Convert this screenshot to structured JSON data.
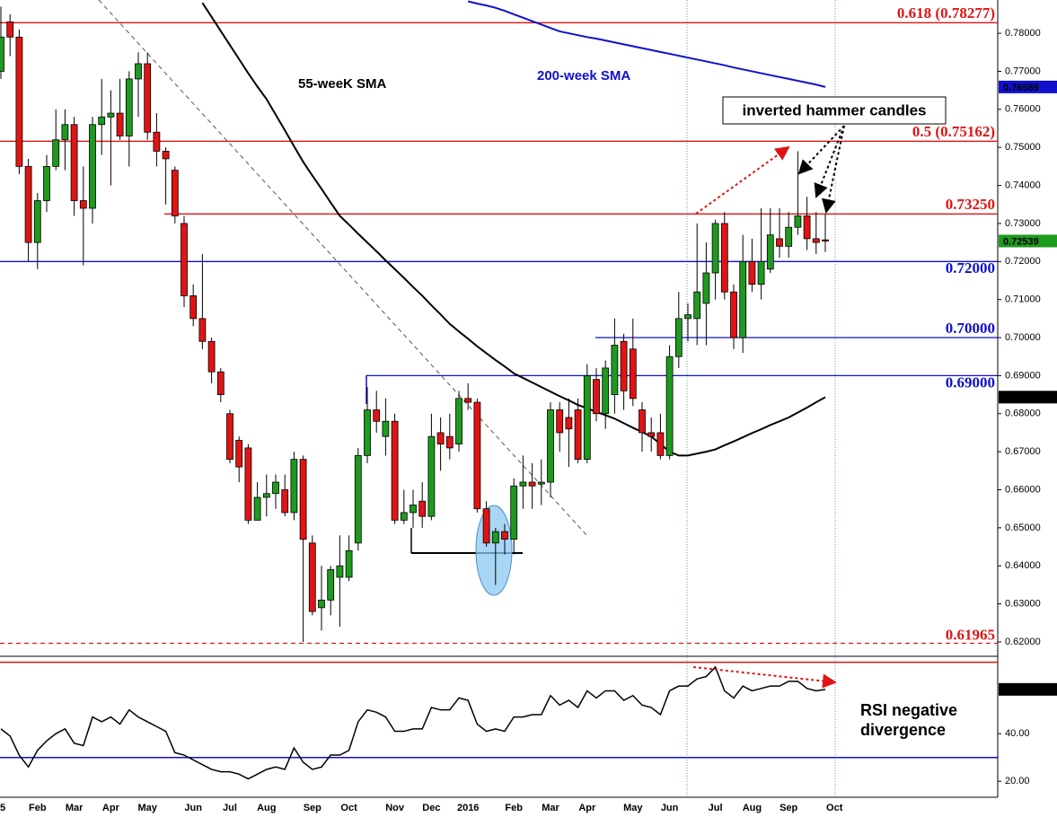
{
  "chart_data": [
    {
      "type": "candlestick",
      "categories": [
        "5",
        null,
        null,
        null,
        "Feb",
        null,
        null,
        null,
        "Mar",
        null,
        null,
        null,
        "Apr",
        null,
        null,
        null,
        "May",
        null,
        null,
        null,
        null,
        "Jun",
        null,
        null,
        null,
        "Jul",
        null,
        null,
        null,
        "Aug",
        null,
        null,
        null,
        null,
        "Sep",
        null,
        null,
        null,
        "Oct",
        null,
        null,
        null,
        null,
        "Nov",
        null,
        null,
        null,
        "Dec",
        null,
        null,
        null,
        "2016",
        null,
        null,
        null,
        null,
        "Feb",
        null,
        null,
        null,
        "Mar",
        null,
        null,
        null,
        "Apr",
        null,
        null,
        null,
        null,
        "May",
        null,
        null,
        null,
        "Jun",
        null,
        null,
        null,
        null,
        "Jul",
        null,
        null,
        null,
        "Aug",
        null,
        null,
        null,
        "Sep",
        null,
        null,
        null,
        null,
        "Oct"
      ],
      "open": [
        0.77,
        0.783,
        0.779,
        0.745,
        0.725,
        0.736,
        0.745,
        0.752,
        0.756,
        0.736,
        0.734,
        0.756,
        0.758,
        0.759,
        0.753,
        0.768,
        0.772,
        0.754,
        0.749,
        0.744,
        0.73,
        0.711,
        0.705,
        0.699,
        0.691,
        0.68,
        0.673,
        0.671,
        0.652,
        0.658,
        0.659,
        0.66,
        0.654,
        0.668,
        0.646,
        0.629,
        0.631,
        0.637,
        0.637,
        0.646,
        0.669,
        0.681,
        0.674,
        0.678,
        0.652,
        0.654,
        0.657,
        0.653,
        0.675,
        0.674,
        0.672,
        0.684,
        0.683,
        0.655,
        0.646,
        0.649,
        0.647,
        0.661,
        0.662,
        0.6615,
        0.662,
        0.681,
        0.679,
        0.681,
        0.668,
        0.689,
        0.68,
        0.685,
        0.699,
        0.697,
        0.681,
        0.675,
        0.675,
        0.669,
        0.695,
        0.705,
        0.705,
        0.709,
        0.717,
        0.73,
        0.712,
        0.7,
        0.72,
        0.714,
        0.718,
        0.726,
        0.724,
        0.729,
        0.732,
        0.726,
        0.7257,
        null
      ],
      "high": [
        0.787,
        0.785,
        0.781,
        0.747,
        0.738,
        0.748,
        0.76,
        0.76,
        0.758,
        0.745,
        0.758,
        0.768,
        0.765,
        0.768,
        0.77,
        0.775,
        0.775,
        0.759,
        0.75,
        0.745,
        0.732,
        0.714,
        0.722,
        0.7,
        0.692,
        0.681,
        0.674,
        0.672,
        0.662,
        0.664,
        0.664,
        0.664,
        0.67,
        0.669,
        0.648,
        0.64,
        0.64,
        0.648,
        0.648,
        0.671,
        0.687,
        0.686,
        0.684,
        0.68,
        0.66,
        0.66,
        0.662,
        0.68,
        0.679,
        0.68,
        0.686,
        0.688,
        0.684,
        0.657,
        0.65,
        0.651,
        0.663,
        0.669,
        0.667,
        0.668,
        0.683,
        0.683,
        0.684,
        0.684,
        0.693,
        0.692,
        0.694,
        0.705,
        0.701,
        0.705,
        0.683,
        0.679,
        0.68,
        0.698,
        0.712,
        0.709,
        0.73,
        0.725,
        0.731,
        0.733,
        0.714,
        0.727,
        0.726,
        0.734,
        0.734,
        0.734,
        0.733,
        0.749,
        0.737,
        0.733,
        0.7325,
        null
      ],
      "low": [
        0.768,
        0.774,
        0.743,
        0.72,
        0.718,
        0.733,
        0.744,
        0.744,
        0.732,
        0.719,
        0.73,
        0.748,
        0.74,
        0.752,
        0.745,
        0.758,
        0.752,
        0.745,
        0.735,
        0.73,
        0.708,
        0.703,
        0.697,
        0.688,
        0.683,
        0.667,
        0.662,
        0.651,
        0.652,
        0.653,
        0.655,
        0.653,
        0.652,
        0.62,
        0.627,
        0.623,
        0.627,
        0.624,
        0.636,
        0.644,
        0.667,
        0.675,
        0.669,
        0.651,
        0.651,
        0.65,
        0.65,
        0.652,
        0.665,
        0.668,
        0.67,
        0.681,
        0.654,
        0.645,
        0.635,
        0.643,
        0.643,
        0.655,
        0.655,
        0.656,
        0.658,
        0.67,
        0.666,
        0.667,
        0.667,
        0.678,
        0.676,
        0.68,
        0.681,
        0.682,
        0.67,
        0.67,
        0.668,
        0.668,
        0.692,
        0.699,
        0.698,
        0.698,
        0.71,
        0.71,
        0.697,
        0.696,
        0.712,
        0.71,
        0.717,
        0.721,
        0.721,
        0.727,
        0.723,
        0.722,
        0.7225,
        null
      ],
      "close": [
        0.779,
        0.779,
        0.745,
        0.725,
        0.736,
        0.745,
        0.752,
        0.756,
        0.736,
        0.734,
        0.756,
        0.758,
        0.759,
        0.753,
        0.768,
        0.772,
        0.754,
        0.749,
        0.747,
        0.732,
        0.711,
        0.705,
        0.699,
        0.691,
        0.685,
        0.668,
        0.666,
        0.652,
        0.658,
        0.659,
        0.662,
        0.654,
        0.668,
        0.647,
        0.628,
        0.631,
        0.639,
        0.64,
        0.644,
        0.669,
        0.681,
        0.678,
        0.678,
        0.652,
        0.654,
        0.656,
        0.653,
        0.674,
        0.672,
        0.671,
        0.684,
        0.683,
        0.655,
        0.646,
        0.649,
        0.647,
        0.661,
        0.662,
        0.661,
        0.662,
        0.681,
        0.675,
        0.676,
        0.668,
        0.69,
        0.68,
        0.692,
        0.698,
        0.686,
        0.684,
        0.675,
        0.674,
        0.669,
        0.695,
        0.705,
        0.706,
        0.712,
        0.717,
        0.73,
        0.712,
        0.7,
        0.72,
        0.714,
        0.72,
        0.727,
        0.724,
        0.729,
        0.732,
        0.726,
        0.725,
        0.72539,
        null
      ],
      "up_color": "#1e9a1e",
      "down_color": "#e01414",
      "overlays": [
        {
          "name": "55-weeK SMA",
          "color": "#000000",
          "values": [
            null,
            null,
            null,
            null,
            null,
            null,
            null,
            null,
            null,
            null,
            null,
            null,
            null,
            null,
            null,
            null,
            null,
            null,
            null,
            null,
            null,
            null,
            0.788,
            0.7843,
            0.7806,
            0.7769,
            0.7732,
            0.7695,
            0.766,
            0.7627,
            0.7586,
            0.7545,
            0.7503,
            0.7462,
            0.7426,
            0.7391,
            0.7355,
            0.732,
            0.7297,
            0.7273,
            0.725,
            0.7227,
            0.7203,
            0.718,
            0.7157,
            0.7133,
            0.711,
            0.7085,
            0.7061,
            0.7036,
            0.7016,
            0.6997,
            0.6977,
            0.6959,
            0.6941,
            0.6924,
            0.6906,
            0.6894,
            0.6882,
            0.687,
            0.6858,
            0.6846,
            0.6835,
            0.6823,
            0.6814,
            0.6805,
            0.6796,
            0.6787,
            0.6775,
            0.6763,
            0.6752,
            0.674,
            0.672,
            0.67,
            0.669,
            0.669,
            0.6695,
            0.67,
            0.6706,
            0.6717,
            0.6727,
            0.6738,
            0.6749,
            0.6759,
            0.677,
            0.678,
            0.679,
            0.6803,
            0.6816,
            0.683,
            0.68435,
            null
          ]
        },
        {
          "name": "200-week SMA",
          "color": "#1010cc",
          "values": [
            null,
            null,
            null,
            null,
            null,
            null,
            null,
            null,
            null,
            null,
            null,
            null,
            null,
            null,
            null,
            null,
            null,
            null,
            null,
            null,
            null,
            null,
            null,
            null,
            null,
            null,
            null,
            null,
            null,
            null,
            null,
            null,
            null,
            null,
            null,
            null,
            null,
            null,
            null,
            null,
            null,
            null,
            null,
            null,
            null,
            null,
            null,
            null,
            null,
            null,
            null,
            0.7884,
            0.7878,
            0.7873,
            0.7867,
            0.7859,
            0.785,
            0.7841,
            0.7832,
            0.7823,
            0.7814,
            0.7805,
            0.78,
            0.7795,
            0.779,
            0.7786,
            0.7781,
            0.7776,
            0.7771,
            0.7766,
            0.7761,
            0.7756,
            0.7751,
            0.7746,
            0.7741,
            0.7736,
            0.7731,
            0.7726,
            0.7721,
            0.7716,
            0.771,
            0.7705,
            0.77,
            0.7695,
            0.769,
            0.7685,
            0.768,
            0.7675,
            0.767,
            0.7665,
            0.76589,
            null
          ]
        }
      ],
      "levels": [
        {
          "value": 0.78277,
          "label": "0.618 (0.78277)",
          "color": "#e01414"
        },
        {
          "value": 0.75162,
          "label": "0.5 (0.75162)",
          "color": "#e01414"
        },
        {
          "value": 0.7325,
          "label": "0.73250",
          "color": "#e01414"
        },
        {
          "value": 0.72,
          "label": "0.72000",
          "color": "#1010cc"
        },
        {
          "value": 0.7,
          "label": "0.70000",
          "color": "#1010cc"
        },
        {
          "value": 0.69,
          "label": "0.69000",
          "color": "#1010cc"
        },
        {
          "value": 0.61965,
          "label": "0.61965",
          "color": "#e01414",
          "dashed": true
        }
      ],
      "annotation": "inverted hammer candles",
      "ylim": [
        0.61622,
        0.78875
      ],
      "yticks": [
        {
          "value": 0.62,
          "label": "0.62000"
        },
        {
          "value": 0.63,
          "label": "0.63000"
        },
        {
          "value": 0.64,
          "label": "0.64000"
        },
        {
          "value": 0.65,
          "label": "0.65000"
        },
        {
          "value": 0.66,
          "label": "0.66000"
        },
        {
          "value": 0.67,
          "label": "0.67000"
        },
        {
          "value": 0.68,
          "label": "0.68000"
        },
        {
          "value": 0.69,
          "label": "0.69000"
        },
        {
          "value": 0.7,
          "label": "0.70000"
        },
        {
          "value": 0.71,
          "label": "0.71000"
        },
        {
          "value": 0.72,
          "label": "0.72000"
        },
        {
          "value": 0.73,
          "label": "0.73000"
        },
        {
          "value": 0.74,
          "label": "0.74000"
        },
        {
          "value": 0.75,
          "label": "0.75000"
        },
        {
          "value": 0.76,
          "label": "0.76000"
        },
        {
          "value": 0.77,
          "label": "0.77000"
        },
        {
          "value": 0.78,
          "label": "0.78000"
        }
      ]
    },
    {
      "type": "line",
      "color": "#000000",
      "values": [
        42,
        39,
        31,
        26,
        33,
        37,
        40,
        42,
        36,
        35,
        47,
        45,
        47,
        44,
        50,
        47,
        45,
        43,
        41,
        32,
        31,
        29,
        27,
        25,
        24,
        24,
        23,
        21,
        23,
        25,
        26,
        25,
        34,
        28,
        25,
        26,
        31,
        31,
        33,
        45,
        50,
        49,
        47,
        41,
        41,
        42,
        42,
        51,
        50,
        50,
        55,
        54,
        44,
        41,
        42,
        41,
        47,
        47,
        48,
        48,
        56,
        52,
        54,
        51,
        58,
        55,
        58,
        58,
        54,
        56,
        52,
        51,
        48,
        58,
        60,
        60,
        63,
        64,
        68,
        58,
        55,
        60,
        58,
        59,
        60,
        60,
        62,
        62,
        59,
        58,
        58.61,
        null
      ],
      "reference_lines": [
        {
          "value": 70,
          "color": "#e01414"
        },
        {
          "value": 30,
          "color": "#1010cc"
        }
      ],
      "annotation": [
        "RSI negative",
        "divergence"
      ],
      "ylim": [
        13.3,
        72.5
      ],
      "yticks": [
        {
          "value": 20,
          "label": "20.00"
        },
        {
          "value": 40,
          "label": "40.00"
        }
      ]
    }
  ]
}
